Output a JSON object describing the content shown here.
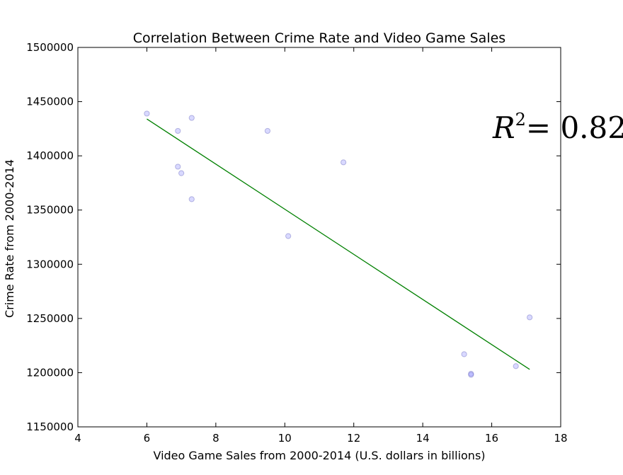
{
  "chart_data": {
    "type": "scatter",
    "title": "Correlation Between Crime Rate and Video Game Sales",
    "xlabel": "Video Game Sales from 2000-2014 (U.S. dollars in billions)",
    "ylabel": "Crime Rate from 2000-2014",
    "xlim": [
      4,
      18
    ],
    "ylim": [
      1150000,
      1500000
    ],
    "xticks": [
      4,
      6,
      8,
      10,
      12,
      14,
      16,
      18
    ],
    "yticks": [
      1150000,
      1200000,
      1250000,
      1300000,
      1350000,
      1400000,
      1450000,
      1500000
    ],
    "grid": false,
    "points": [
      {
        "x": 6.0,
        "y": 1439000
      },
      {
        "x": 6.9,
        "y": 1423000
      },
      {
        "x": 7.3,
        "y": 1435000
      },
      {
        "x": 6.9,
        "y": 1390000
      },
      {
        "x": 7.0,
        "y": 1384000
      },
      {
        "x": 7.3,
        "y": 1360000
      },
      {
        "x": 9.5,
        "y": 1423000
      },
      {
        "x": 10.1,
        "y": 1326000
      },
      {
        "x": 11.7,
        "y": 1394000
      },
      {
        "x": 15.2,
        "y": 1217000
      },
      {
        "x": 15.4,
        "y": 1199000
      },
      {
        "x": 15.4,
        "y": 1198000
      },
      {
        "x": 16.7,
        "y": 1206000
      },
      {
        "x": 17.1,
        "y": 1251000
      }
    ],
    "point_color": "#8080ff",
    "fit_line": {
      "x": [
        6.0,
        17.1
      ],
      "y": [
        1434000,
        1203000
      ],
      "color": "#008000"
    },
    "annotation": {
      "base": "R",
      "exponent": "2",
      "rest": "= 0.82"
    }
  }
}
